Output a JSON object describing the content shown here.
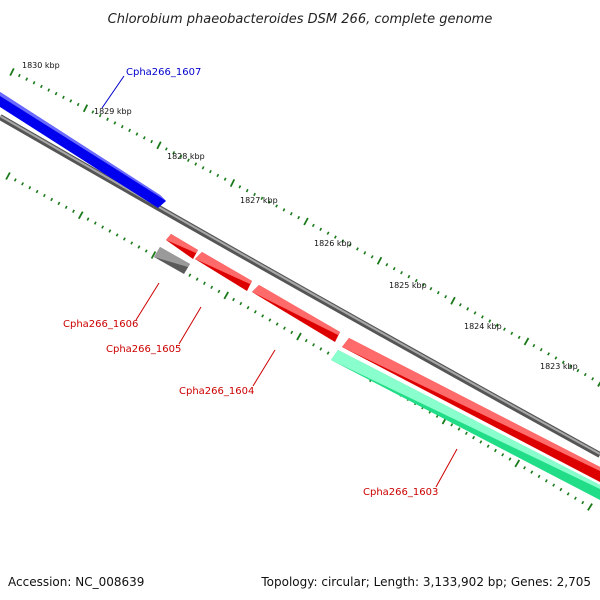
{
  "title": "Chlorobium phaeobacteroides DSM 266, complete genome",
  "footer": {
    "accession": "Accession: NC_008639",
    "summary": "Topology: circular; Length: 3,133,902 bp; Genes: 2,705"
  },
  "colors": {
    "backbone": "#7f7f7f",
    "tick": "#1a7a1a",
    "gene_blue": "#0000ff",
    "gene_red": "#ff0000",
    "gene_gray": "#666666",
    "gene_teal": "#22ee99",
    "label_blue": "#0000cc",
    "label_red": "#cc0000"
  },
  "kbp_labels": [
    "1830 kbp",
    "1829 kbp",
    "1828 kbp",
    "1827 kbp",
    "1826 kbp",
    "1825 kbp",
    "1824 kbp",
    "1823 kbp"
  ],
  "genes": [
    {
      "id": "Cpha266_1607",
      "strand": "forward",
      "color": "blue"
    },
    {
      "id": "Cpha266_1606",
      "strand": "reverse",
      "color": "red"
    },
    {
      "id": "Cpha266_1605",
      "strand": "reverse",
      "color": "red"
    },
    {
      "id": "Cpha266_1604",
      "strand": "reverse",
      "color": "red"
    },
    {
      "id": "Cpha266_1603",
      "strand": "reverse",
      "color": "teal"
    }
  ],
  "unlabeled_feature": {
    "color": "gray"
  }
}
